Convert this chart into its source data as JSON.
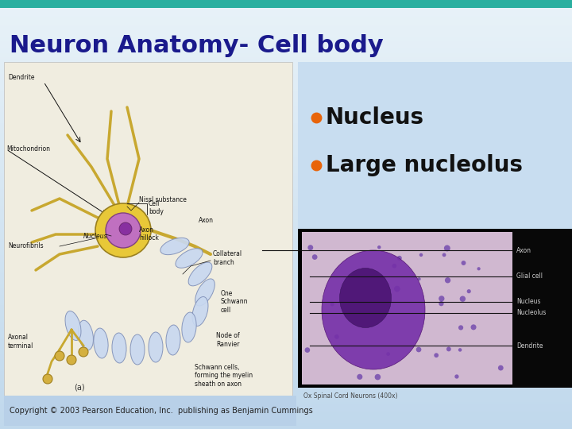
{
  "title": "Neuron Anatomy- Cell body",
  "title_color": "#1a1a8c",
  "title_fontsize": 22,
  "header_bar_color": "#2aafa0",
  "bullet_color": "#e8640a",
  "bullet1": "Nucleus",
  "bullet2": "Large nucleolus",
  "bullet_fontsize": 20,
  "bullet_text_color": "#111111",
  "copyright_text": "Copyright © 2003 Pearson Education, Inc.  publishing as Benjamin Cummings",
  "copyright_fontsize": 7,
  "copyright_color": "#222222",
  "bg_top": "#e8f2f8",
  "bg_bottom": "#c0d8ec",
  "right_upper_bg": "#c8ddf0",
  "micro_bg": "#d0b8d0",
  "micro_cell_color": "#7030a0",
  "micro_nuc_color": "#501878",
  "black_strip_color": "#080808",
  "left_panel_bg": "#f0ede0",
  "soma_color": "#e8c838",
  "nucleus_color": "#c070c0",
  "nucleolus_color": "#8830a0",
  "myelin_color": "#c8d8f0",
  "axon_color": "#c8a830",
  "label_fontsize": 5.5,
  "micro_label_fontsize": 5.5
}
